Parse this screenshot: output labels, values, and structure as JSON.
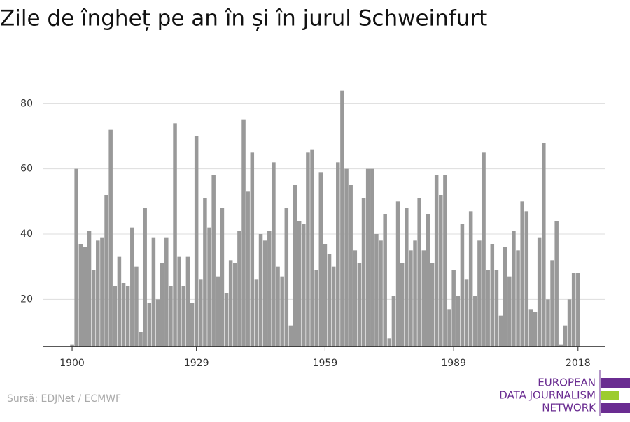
{
  "chart_data": {
    "type": "bar",
    "title": "Zile de îngheț pe an în și în jurul Schweinfurt",
    "source": "Sursă: EDJNet / ECMWF",
    "logo": [
      "EUROPEAN",
      "DATA JOURNALISM",
      "NETWORK"
    ],
    "color": "#999999",
    "x": [
      1900,
      1901,
      1902,
      1903,
      1904,
      1905,
      1906,
      1907,
      1908,
      1909,
      1910,
      1911,
      1912,
      1913,
      1914,
      1915,
      1916,
      1917,
      1918,
      1919,
      1920,
      1921,
      1922,
      1923,
      1924,
      1925,
      1926,
      1927,
      1928,
      1929,
      1930,
      1931,
      1932,
      1933,
      1934,
      1935,
      1936,
      1937,
      1938,
      1939,
      1940,
      1941,
      1942,
      1943,
      1944,
      1945,
      1946,
      1947,
      1948,
      1949,
      1950,
      1951,
      1952,
      1953,
      1954,
      1955,
      1956,
      1957,
      1958,
      1959,
      1960,
      1961,
      1962,
      1963,
      1964,
      1965,
      1966,
      1967,
      1968,
      1969,
      1970,
      1971,
      1972,
      1973,
      1974,
      1975,
      1976,
      1977,
      1978,
      1979,
      1980,
      1981,
      1982,
      1983,
      1984,
      1985,
      1986,
      1987,
      1988,
      1989,
      1990,
      1991,
      1992,
      1993,
      1994,
      1995,
      1996,
      1997,
      1998,
      1999,
      2000,
      2001,
      2002,
      2003,
      2004,
      2005,
      2006,
      2007,
      2008,
      2009,
      2010,
      2011,
      2012,
      2013,
      2014,
      2015,
      2016,
      2017,
      2018
    ],
    "values": [
      6,
      60,
      37,
      36,
      41,
      29,
      38,
      39,
      52,
      72,
      24,
      33,
      25,
      24,
      42,
      30,
      10,
      48,
      19,
      39,
      20,
      31,
      39,
      24,
      74,
      33,
      24,
      33,
      19,
      70,
      26,
      51,
      42,
      58,
      27,
      48,
      22,
      32,
      31,
      41,
      75,
      53,
      65,
      26,
      40,
      38,
      41,
      62,
      30,
      27,
      48,
      12,
      55,
      44,
      43,
      65,
      66,
      29,
      59,
      37,
      34,
      30,
      62,
      84,
      60,
      55,
      35,
      31,
      51,
      60,
      60,
      40,
      38,
      46,
      8,
      21,
      50,
      31,
      48,
      35,
      38,
      51,
      35,
      46,
      31,
      58,
      52,
      58,
      17,
      29,
      21,
      43,
      26,
      47,
      21,
      38,
      65,
      29,
      37,
      29,
      15,
      36,
      27,
      41,
      35,
      50,
      47,
      17,
      16,
      39,
      68,
      20,
      32,
      44,
      6,
      12,
      20,
      28,
      28
    ],
    "xlim": [
      1893.3,
      2024.4
    ],
    "xticks": [
      1900,
      1929,
      1959,
      1989,
      2018
    ],
    "ylim": [
      5.5,
      88
    ],
    "yticks": [
      20,
      40,
      60,
      80
    ],
    "grid": true
  }
}
